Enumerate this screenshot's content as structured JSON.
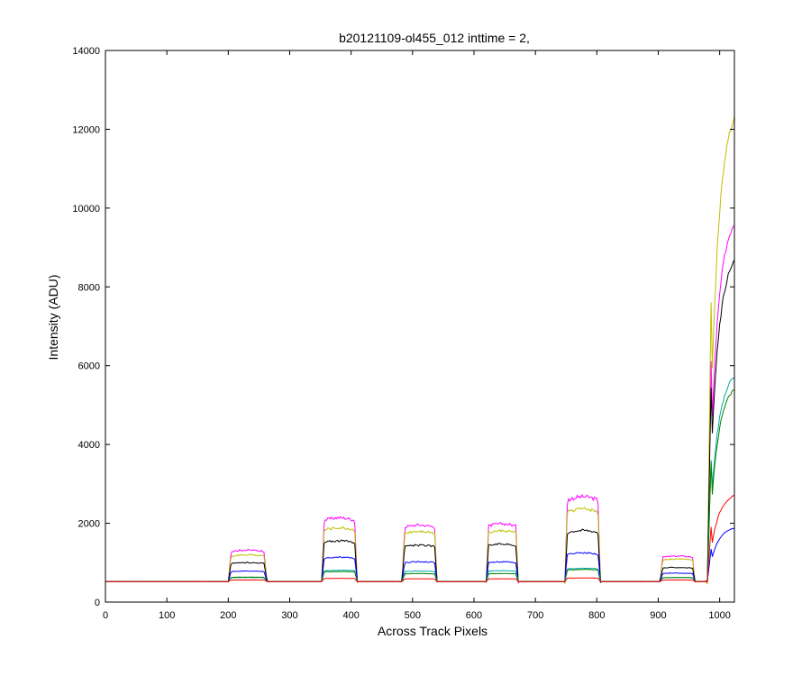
{
  "chart_data": {
    "type": "line",
    "title": "b20121109-ol455_012 inttime = 2,",
    "xlabel": "Across Track Pixels",
    "ylabel": "Intensity (ADU)",
    "xlim": [
      0,
      1024
    ],
    "ylim": [
      0,
      14000
    ],
    "xticks": [
      0,
      100,
      200,
      300,
      400,
      500,
      600,
      700,
      800,
      900,
      1000
    ],
    "yticks": [
      0,
      2000,
      4000,
      6000,
      8000,
      10000,
      12000,
      14000
    ],
    "grid": false,
    "legend": "none",
    "baseline": 520,
    "segments": [
      {
        "start": 200,
        "end": 263
      },
      {
        "start": 352,
        "end": 410
      },
      {
        "start": 483,
        "end": 540
      },
      {
        "start": 620,
        "end": 672
      },
      {
        "start": 748,
        "end": 806
      },
      {
        "start": 903,
        "end": 960
      }
    ],
    "series": [
      {
        "color": "#ff00ff",
        "plateaus": [
          1300,
          2100,
          1920,
          1950,
          2620,
          1150
        ],
        "edge": {
          "peak": 9620,
          "knee": 8500
        }
      },
      {
        "color": "#bfbf00",
        "plateaus": [
          1180,
          1850,
          1770,
          1780,
          2320,
          1080
        ],
        "edge": {
          "peak": 12250,
          "knee": 10800
        }
      },
      {
        "color": "#000000",
        "plateaus": [
          990,
          1530,
          1420,
          1450,
          1790,
          870
        ],
        "edge": {
          "peak": 8650,
          "knee": 7600
        }
      },
      {
        "color": "#0000ff",
        "plateaus": [
          780,
          1120,
          1010,
          1010,
          1230,
          730
        ],
        "edge": {
          "peak": 1880,
          "knee": 1700
        }
      },
      {
        "color": "#00aaaa",
        "plateaus": [
          620,
          800,
          780,
          790,
          850,
          620
        ],
        "edge": {
          "peak": 5720,
          "knee": 5000
        }
      },
      {
        "color": "#008000",
        "plateaus": [
          630,
          770,
          720,
          720,
          820,
          620
        ],
        "edge": {
          "peak": 5400,
          "knee": 4900
        }
      },
      {
        "color": "#ff0000",
        "plateaus": [
          560,
          600,
          590,
          590,
          610,
          560
        ],
        "edge": {
          "peak": 2700,
          "knee": 2500
        }
      }
    ]
  }
}
